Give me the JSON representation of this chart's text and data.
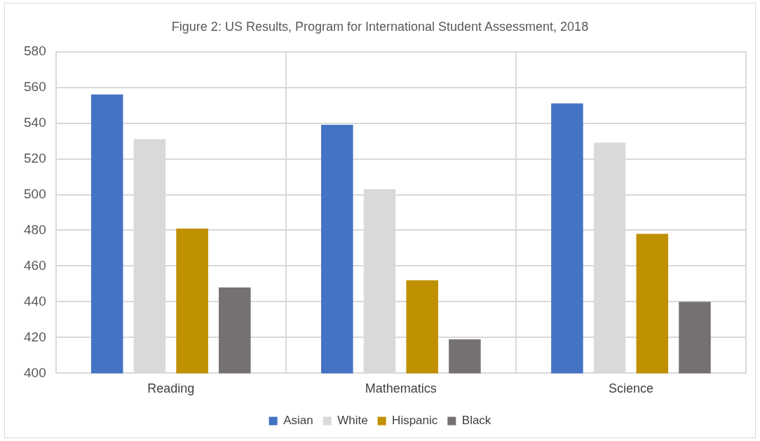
{
  "chart_data": {
    "type": "bar",
    "title": "Figure 2: US Results, Program for International Student Assessment, 2018",
    "categories": [
      "Reading",
      "Mathematics",
      "Science"
    ],
    "series": [
      {
        "name": "Asian",
        "color": "#4472c4",
        "values": [
          556,
          539,
          551
        ]
      },
      {
        "name": "White",
        "color": "#d9d9d9",
        "values": [
          531,
          503,
          529
        ]
      },
      {
        "name": "Hispanic",
        "color": "#bf9000",
        "values": [
          481,
          452,
          478
        ]
      },
      {
        "name": "Black",
        "color": "#767171",
        "values": [
          448,
          419,
          440
        ]
      }
    ],
    "ylim": [
      400,
      580
    ],
    "yticks": [
      400,
      420,
      440,
      460,
      480,
      500,
      520,
      540,
      560,
      580
    ],
    "grid": true,
    "legend": "bottom"
  }
}
